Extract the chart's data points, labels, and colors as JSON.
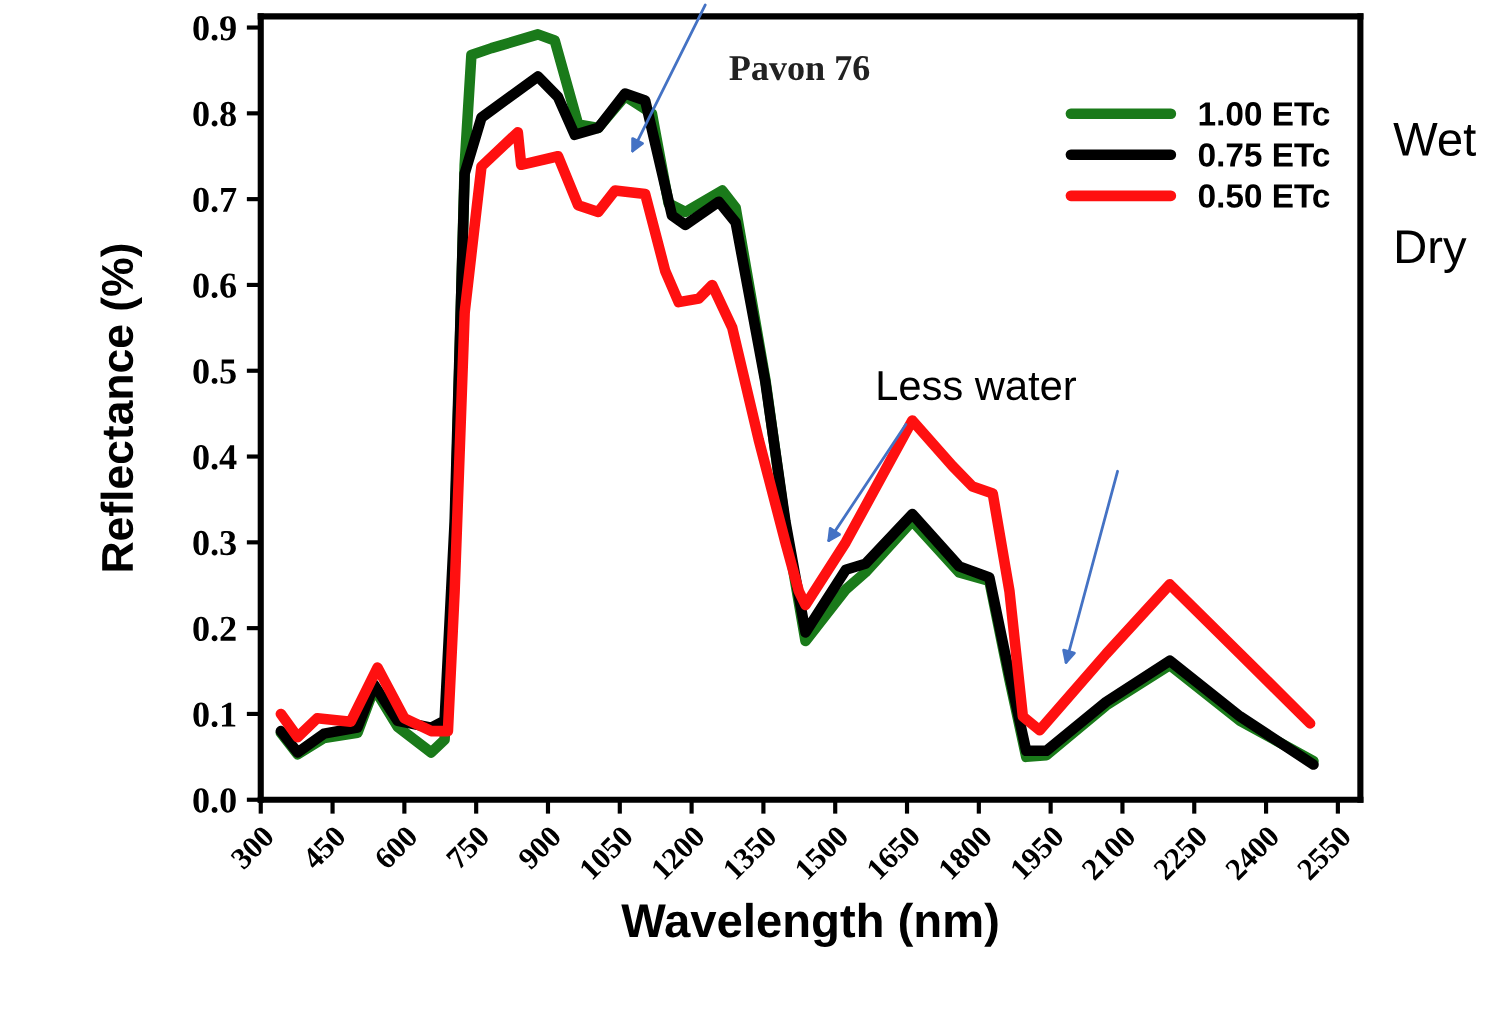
{
  "chart_data": {
    "type": "line",
    "title": "Pavon 76",
    "xlabel": "Wavelength (nm)",
    "ylabel": "Reflectance (%)",
    "xlim": [
      300,
      2597
    ],
    "ylim": [
      0,
      0.913
    ],
    "xticks": [
      300,
      450,
      600,
      750,
      900,
      1050,
      1200,
      1350,
      1500,
      1650,
      1800,
      1950,
      2100,
      2250,
      2400,
      2550
    ],
    "yticks": [
      {
        "value": 0,
        "label": "0.0"
      },
      0.1,
      0.2,
      0.3,
      0.4,
      0.5,
      0.6,
      0.7,
      0.8,
      0.9
    ],
    "grid": false,
    "legend": "top right",
    "marker": "none",
    "line_style": "solid",
    "annotations": [
      "Less water",
      "Wet",
      "Dry"
    ],
    "series": [
      {
        "name": "1.00 ETc",
        "color": "#1a7a1a",
        "x": [
          342,
          377,
          432,
          502,
          537,
          586,
          656,
          684,
          705,
          726,
          740,
          782,
          879,
          914,
          935,
          963,
          1005,
          1061,
          1117,
          1152,
          1187,
          1264,
          1292,
          1354,
          1396,
          1438,
          1522,
          1563,
          1661,
          1759,
          1822,
          1864,
          1899,
          1941,
          2066,
          2199,
          2346,
          2499
        ],
        "values": [
          0.078,
          0.053,
          0.072,
          0.078,
          0.13,
          0.085,
          0.055,
          0.07,
          0.3,
          0.74,
          0.868,
          0.876,
          0.892,
          0.885,
          0.843,
          0.787,
          0.783,
          0.82,
          0.8,
          0.695,
          0.685,
          0.71,
          0.69,
          0.49,
          0.32,
          0.185,
          0.245,
          0.265,
          0.325,
          0.265,
          0.255,
          0.14,
          0.05,
          0.052,
          0.11,
          0.157,
          0.092,
          0.045
        ]
      },
      {
        "name": "0.75 ETc",
        "color": "#000000",
        "x": [
          342,
          377,
          432,
          502,
          537,
          586,
          656,
          684,
          705,
          726,
          761,
          879,
          921,
          956,
          1005,
          1061,
          1103,
          1159,
          1187,
          1257,
          1292,
          1354,
          1396,
          1438,
          1522,
          1563,
          1661,
          1759,
          1822,
          1864,
          1899,
          1941,
          2066,
          2199,
          2346,
          2499
        ],
        "values": [
          0.08,
          0.055,
          0.077,
          0.084,
          0.134,
          0.092,
          0.084,
          0.092,
          0.324,
          0.73,
          0.795,
          0.843,
          0.819,
          0.775,
          0.783,
          0.823,
          0.815,
          0.681,
          0.67,
          0.697,
          0.673,
          0.487,
          0.324,
          0.195,
          0.268,
          0.275,
          0.333,
          0.272,
          0.259,
          0.146,
          0.057,
          0.057,
          0.114,
          0.162,
          0.097,
          0.041
        ]
      },
      {
        "name": "0.50 ETc",
        "color": "#ff1010",
        "x": [
          342,
          377,
          418,
          488,
          544,
          600,
          656,
          691,
          705,
          726,
          761,
          837,
          844,
          921,
          963,
          1005,
          1040,
          1103,
          1145,
          1173,
          1215,
          1243,
          1285,
          1340,
          1396,
          1424,
          1438,
          1522,
          1661,
          1745,
          1787,
          1829,
          1864,
          1892,
          1927,
          2066,
          2199,
          2346,
          2492
        ],
        "values": [
          0.1,
          0.073,
          0.095,
          0.091,
          0.154,
          0.095,
          0.08,
          0.08,
          0.243,
          0.568,
          0.738,
          0.778,
          0.74,
          0.75,
          0.693,
          0.685,
          0.71,
          0.706,
          0.616,
          0.58,
          0.584,
          0.6,
          0.55,
          0.42,
          0.3,
          0.243,
          0.227,
          0.3,
          0.442,
          0.389,
          0.365,
          0.357,
          0.243,
          0.097,
          0.081,
          0.17,
          0.251,
          0.17,
          0.089
        ]
      }
    ]
  }
}
